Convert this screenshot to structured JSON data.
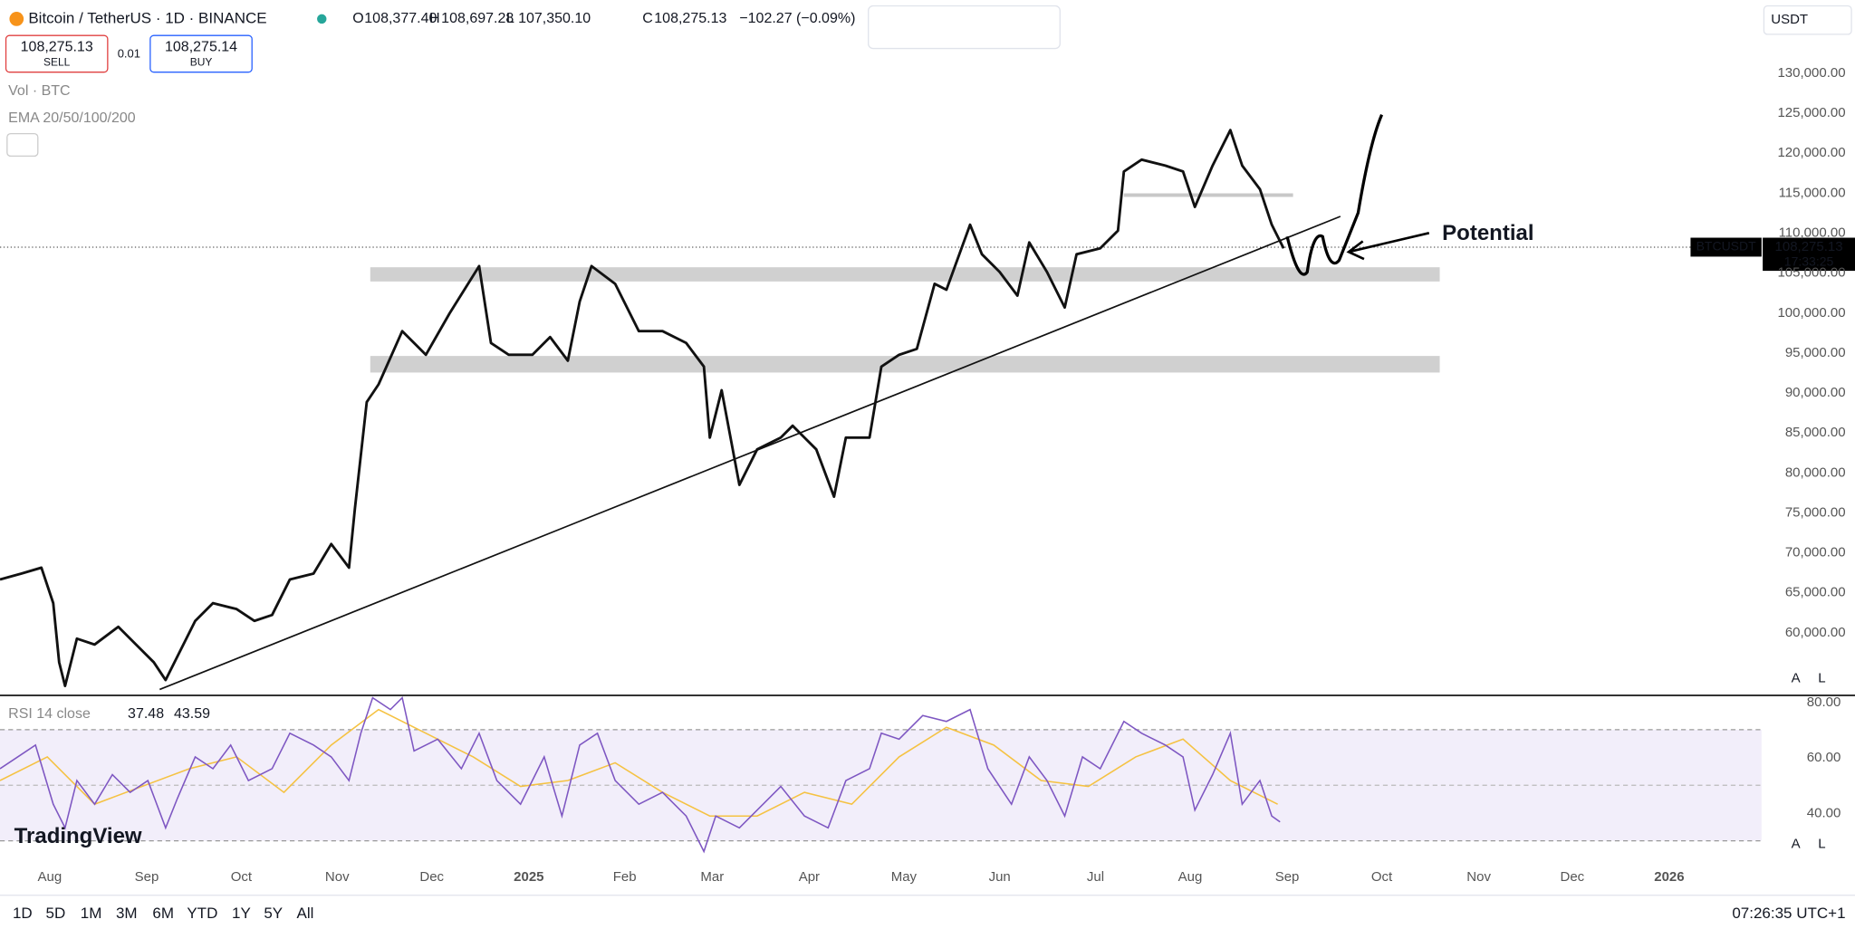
{
  "header": {
    "symbol": "Bitcoin / TetherUS · 1D · BINANCE",
    "open_label": "O",
    "open": "108,377.40",
    "high_label": "H",
    "high": "108,697.28",
    "low_label": "L",
    "low": "107,350.10",
    "close_label": "C",
    "close": "108,275.13",
    "change": "−102.27 (−0.09%)"
  },
  "trade": {
    "sell_price": "108,275.13",
    "sell": "SELL",
    "qty": "0.01",
    "buy_price": "108,275.14",
    "buy": "BUY"
  },
  "indicators": {
    "vol": "Vol · BTC",
    "ema": "EMA 20/50/100/200"
  },
  "currency": "USDT",
  "price_axis": [
    "130,000.00",
    "125,000.00",
    "120,000.00",
    "115,000.00",
    "110,000.00",
    "105,000.00",
    "100,000.00",
    "95,000.00",
    "90,000.00",
    "85,000.00",
    "80,000.00",
    "75,000.00",
    "70,000.00",
    "65,000.00",
    "60,000.00"
  ],
  "price_tag": {
    "symbol": "BTCUSDT",
    "price": "108,275.13",
    "countdown": "17:33:25"
  },
  "annotation": "Potential",
  "rsi": {
    "label": "RSI 14 close",
    "value": "37.48",
    "ma": "43.59",
    "axis": [
      "80.00",
      "60.00",
      "40.00"
    ]
  },
  "time_axis": [
    "Aug",
    "Sep",
    "Oct",
    "Nov",
    "Dec",
    "2025",
    "Feb",
    "Mar",
    "Apr",
    "May",
    "Jun",
    "Jul",
    "Aug",
    "Sep",
    "Oct",
    "Nov",
    "Dec",
    "2026"
  ],
  "scale_buttons": [
    "A",
    "L"
  ],
  "timeframes": [
    "1D",
    "5D",
    "1M",
    "3M",
    "6M",
    "YTD",
    "1Y",
    "5Y",
    "All"
  ],
  "clock": "07:26:35 UTC+1",
  "logo": "TradingView"
}
